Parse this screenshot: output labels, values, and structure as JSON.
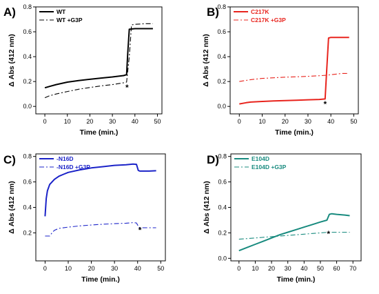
{
  "chart_data": [
    {
      "panel": "A)",
      "type": "line",
      "xlabel": "Time (min.)",
      "ylabel": "Δ Abs (412 nm)",
      "xlim": [
        -4,
        52
      ],
      "ylim": [
        -0.06,
        0.8
      ],
      "xticks": [
        0,
        10,
        20,
        30,
        40,
        50
      ],
      "yticks": [
        0.0,
        0.2,
        0.4,
        0.6,
        0.8
      ],
      "ytick_decimals": 1,
      "color": "#000000",
      "legend_position": "top-left",
      "annotation": {
        "text": "*",
        "x": 36.5,
        "y": 0.13
      },
      "series": [
        {
          "name": "WT",
          "style": "solid",
          "x": [
            0,
            2,
            5,
            10,
            15,
            20,
            25,
            30,
            35,
            36.3,
            36.8,
            37.5,
            40,
            45,
            48
          ],
          "y": [
            0.15,
            0.16,
            0.175,
            0.195,
            0.208,
            0.218,
            0.228,
            0.237,
            0.248,
            0.255,
            0.42,
            0.62,
            0.625,
            0.625,
            0.625
          ]
        },
        {
          "name": "WT +G3P",
          "style": "dashdot",
          "x": [
            0,
            2,
            5,
            10,
            15,
            20,
            25,
            30,
            35,
            36.3,
            37.5,
            38.5,
            40,
            45,
            48
          ],
          "y": [
            0.07,
            0.085,
            0.1,
            0.12,
            0.138,
            0.152,
            0.165,
            0.175,
            0.19,
            0.195,
            0.4,
            0.655,
            0.66,
            0.665,
            0.665
          ]
        }
      ]
    },
    {
      "panel": "B)",
      "type": "line",
      "xlabel": "Time (min.)",
      "ylabel": "Δ Abs (412 nm)",
      "xlim": [
        -4,
        52
      ],
      "ylim": [
        -0.06,
        0.8
      ],
      "xticks": [
        0,
        10,
        20,
        30,
        40,
        50
      ],
      "yticks": [
        0.0,
        0.2,
        0.4,
        0.6,
        0.8
      ],
      "ytick_decimals": 1,
      "color": "#e8231c",
      "legend_position": "top-left",
      "annotation": {
        "text": "*",
        "x": 37.5,
        "y": -0.005
      },
      "series": [
        {
          "name": "C217K",
          "style": "solid",
          "x": [
            0,
            3,
            5,
            10,
            15,
            20,
            25,
            30,
            35,
            37.5,
            38.2,
            39,
            40,
            45,
            48
          ],
          "y": [
            0.02,
            0.03,
            0.035,
            0.04,
            0.044,
            0.047,
            0.05,
            0.053,
            0.056,
            0.06,
            0.3,
            0.55,
            0.555,
            0.555,
            0.555
          ]
        },
        {
          "name": "C217K +G3P",
          "style": "dashdot",
          "x": [
            0,
            5,
            10,
            15,
            20,
            25,
            30,
            35,
            38,
            40,
            45,
            48
          ],
          "y": [
            0.2,
            0.215,
            0.225,
            0.23,
            0.235,
            0.238,
            0.242,
            0.247,
            0.25,
            0.255,
            0.265,
            0.265
          ]
        }
      ]
    },
    {
      "panel": "C)",
      "type": "line",
      "xlabel": "Time (min.)",
      "ylabel": "Δ Abs (412 nm)",
      "xlim": [
        -4,
        52
      ],
      "ylim": [
        -0.02,
        0.82
      ],
      "xticks": [
        0,
        10,
        20,
        30,
        40,
        50
      ],
      "yticks": [
        0.2,
        0.4,
        0.6,
        0.8
      ],
      "ytick_decimals": 1,
      "color": "#1a22c8",
      "legend_position": "top-left",
      "annotation": {
        "text": "*",
        "x": 41,
        "y": 0.2
      },
      "series": [
        {
          "name": "-N16D",
          "style": "solid",
          "x": [
            0,
            0.5,
            1,
            2,
            4,
            6,
            8,
            10,
            15,
            20,
            25,
            30,
            35,
            38,
            39.5,
            40.3,
            41,
            45,
            48
          ],
          "y": [
            0.33,
            0.47,
            0.53,
            0.58,
            0.62,
            0.645,
            0.66,
            0.675,
            0.695,
            0.71,
            0.72,
            0.73,
            0.735,
            0.74,
            0.738,
            0.69,
            0.685,
            0.685,
            0.688
          ]
        },
        {
          "name": "-N16D +G3P",
          "style": "dashdot",
          "x": [
            0,
            2,
            3,
            4,
            6,
            10,
            15,
            20,
            25,
            30,
            35,
            38,
            39.5,
            40.5,
            41,
            45,
            48
          ],
          "y": [
            0.175,
            0.175,
            0.2,
            0.22,
            0.235,
            0.245,
            0.255,
            0.262,
            0.268,
            0.272,
            0.276,
            0.28,
            0.278,
            0.245,
            0.24,
            0.24,
            0.24
          ]
        }
      ]
    },
    {
      "panel": "D)",
      "type": "line",
      "xlabel": "Time (min.)",
      "ylabel": "Δ Abs (412 nm)",
      "xlim": [
        -5,
        75
      ],
      "ylim": [
        -0.02,
        0.82
      ],
      "xticks": [
        0,
        10,
        20,
        30,
        40,
        50,
        60,
        70
      ],
      "yticks": [
        0.0,
        0.2,
        0.4,
        0.6,
        0.8
      ],
      "ytick_decimals": 1,
      "color": "#178a7e",
      "legend_position": "top-left",
      "annotation": {
        "text": "*",
        "x": 55,
        "y": 0.17
      },
      "series": [
        {
          "name": "E104D",
          "style": "solid",
          "x": [
            0,
            5,
            10,
            15,
            20,
            25,
            30,
            35,
            40,
            45,
            50,
            54,
            55.5,
            57,
            60,
            65,
            68
          ],
          "y": [
            0.06,
            0.085,
            0.11,
            0.135,
            0.16,
            0.185,
            0.205,
            0.225,
            0.245,
            0.265,
            0.285,
            0.3,
            0.345,
            0.35,
            0.345,
            0.34,
            0.335
          ]
        },
        {
          "name": "E104D +G3P",
          "style": "dashdot",
          "x": [
            0,
            10,
            20,
            30,
            40,
            50,
            55,
            60,
            68
          ],
          "y": [
            0.15,
            0.16,
            0.17,
            0.18,
            0.19,
            0.2,
            0.205,
            0.205,
            0.205
          ]
        }
      ]
    }
  ]
}
